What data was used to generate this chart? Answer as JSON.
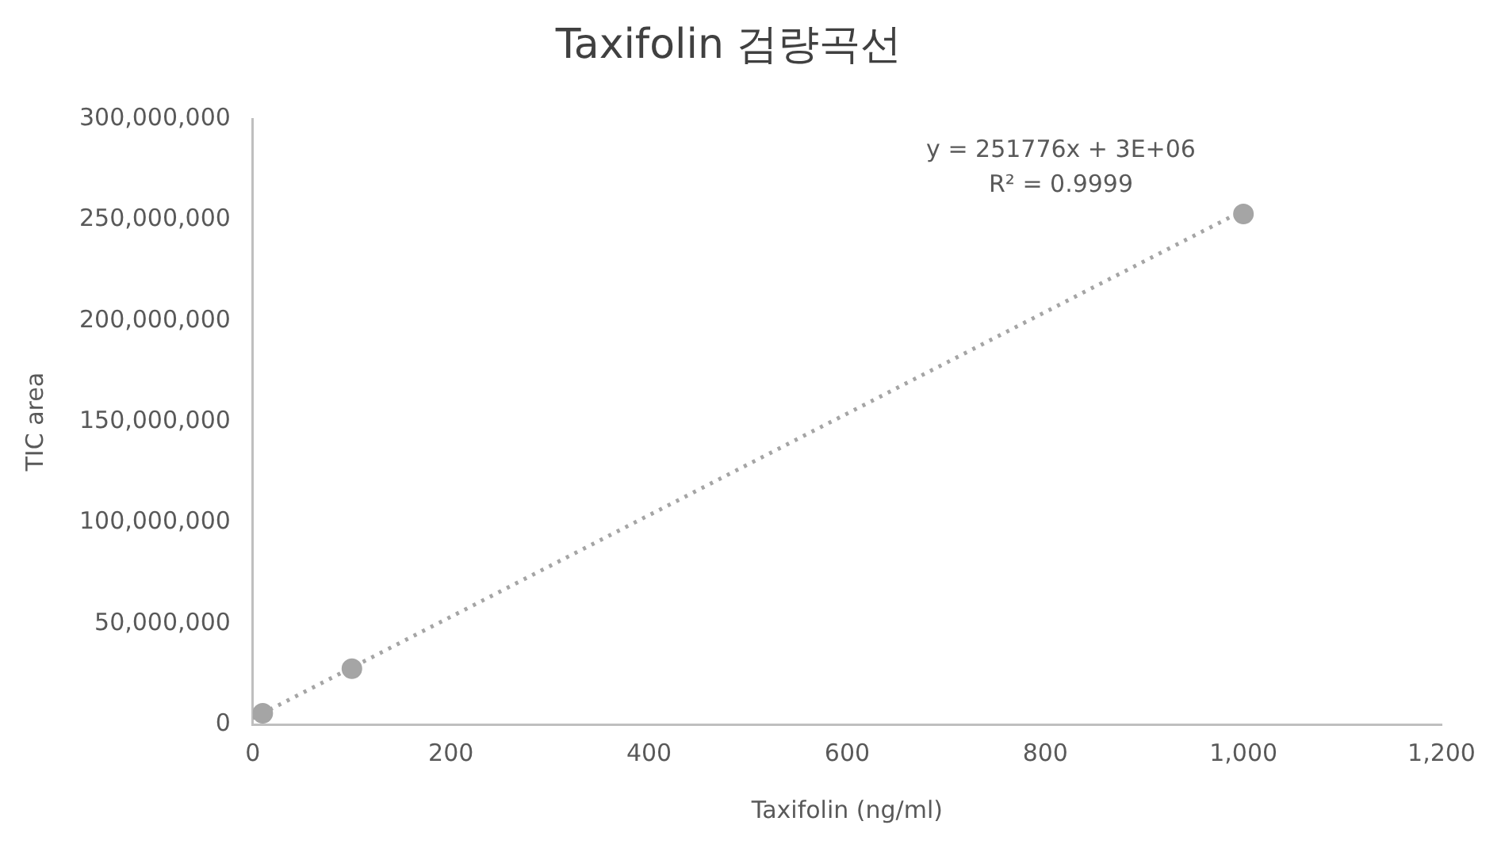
{
  "chart_data": {
    "type": "scatter",
    "title": "Taxifolin 검량곡선",
    "xlabel": "Taxifolin (ng/ml)",
    "ylabel": "TIC area",
    "series": [
      {
        "type": "scatter",
        "color": "#a5a5a5",
        "marker": "circle",
        "x": [
          10,
          100,
          1000
        ],
        "values": [
          5500000,
          27600000,
          253000000
        ]
      },
      {
        "type": "line",
        "color": "#a5a5a5",
        "line_style": "dotted",
        "marker": "none",
        "x": [
          0,
          1000
        ],
        "values": [
          3000000,
          254800000
        ]
      }
    ],
    "annotations": [
      "y = 251776x + 3E+06",
      "R² = 0.9999"
    ],
    "xlim": [
      0,
      1200
    ],
    "xticks": [
      0,
      200,
      400,
      600,
      800,
      {
        "value": 1000,
        "label": "1,000"
      },
      {
        "value": 1200,
        "label": "1,200"
      }
    ],
    "ylim": [
      0,
      300000000
    ],
    "yticks": [
      0,
      {
        "value": 50000000,
        "label": "50,000,000"
      },
      {
        "value": 100000000,
        "label": "100,000,000"
      },
      {
        "value": 150000000,
        "label": "150,000,000"
      },
      {
        "value": 200000000,
        "label": "200,000,000"
      },
      {
        "value": 250000000,
        "label": "250,000,000"
      },
      {
        "value": 300000000,
        "label": "300,000,000"
      }
    ],
    "grid": false,
    "legend": false
  }
}
